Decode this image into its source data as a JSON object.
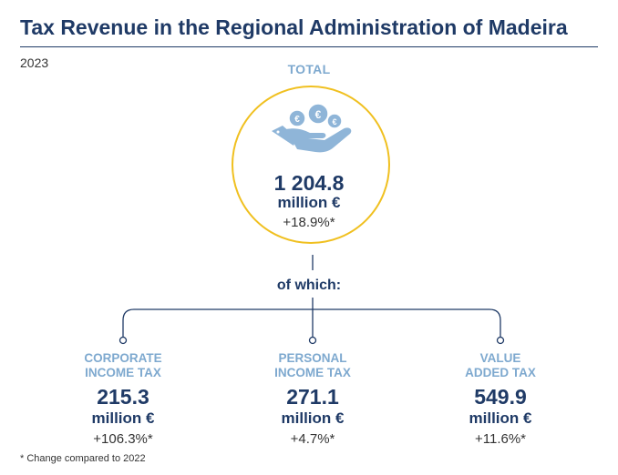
{
  "header": {
    "title": "Tax Revenue in the Regional Administration of Madeira",
    "year": "2023"
  },
  "total": {
    "label": "TOTAL",
    "value": "1 204.8",
    "unit": "million €",
    "change": "+18.9%*",
    "icon": "hand-with-euro-coins-icon"
  },
  "breakdown_label": "of which:",
  "items": [
    {
      "label_line1": "CORPORATE",
      "label_line2": "INCOME TAX",
      "value": "215.3",
      "unit": "million €",
      "change": "+106.3%*"
    },
    {
      "label_line1": "PERSONAL",
      "label_line2": "INCOME TAX",
      "value": "271.1",
      "unit": "million €",
      "change": "+4.7%*"
    },
    {
      "label_line1": "VALUE",
      "label_line2": "ADDED TAX",
      "value": "549.9",
      "unit": "million €",
      "change": "+11.6%*"
    }
  ],
  "footnote": "* Change compared to 2022",
  "colors": {
    "title": "#1f3a66",
    "accent_label": "#7ea9cf",
    "circle": "#f0c020"
  }
}
